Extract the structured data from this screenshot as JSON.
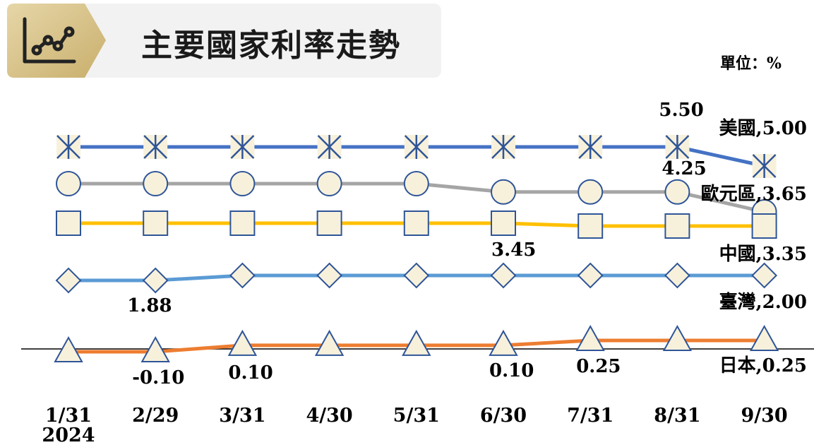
{
  "title": "主要國家利率走勢",
  "unit": "單位：%",
  "icon": "line-chart-icon",
  "colors": {
    "us": "#4472c4",
    "eu": "#a5a5a5",
    "cn": "#ffc000",
    "tw": "#5b9bd5",
    "jp": "#ed7d31",
    "marker_fill": "#f7f1dc",
    "marker_stroke": "#2f5597",
    "header_bg": "#f2f2f2",
    "icon_gold": "#d8c38e"
  },
  "chart_data": {
    "type": "line",
    "categories": [
      "1/31",
      "2/29",
      "3/31",
      "4/30",
      "5/31",
      "6/30",
      "7/31",
      "8/31",
      "9/30"
    ],
    "year_label": "2024",
    "series": [
      {
        "key": "us",
        "name": "美國",
        "marker": "asterisk",
        "values": [
          5.5,
          5.5,
          5.5,
          5.5,
          5.5,
          5.5,
          5.5,
          5.5,
          5.0
        ]
      },
      {
        "key": "eu",
        "name": "歐元區",
        "marker": "circle",
        "values": [
          4.5,
          4.5,
          4.5,
          4.5,
          4.5,
          4.25,
          4.25,
          4.25,
          3.65
        ]
      },
      {
        "key": "cn",
        "name": "中國",
        "marker": "square",
        "values": [
          3.45,
          3.45,
          3.45,
          3.45,
          3.45,
          3.45,
          3.35,
          3.35,
          3.35
        ]
      },
      {
        "key": "tw",
        "name": "臺灣",
        "marker": "diamond",
        "values": [
          1.88,
          1.88,
          2.0,
          2.0,
          2.0,
          2.0,
          2.0,
          2.0,
          2.0
        ]
      },
      {
        "key": "jp",
        "name": "日本",
        "marker": "triangle",
        "values": [
          -0.1,
          -0.1,
          0.1,
          0.1,
          0.1,
          0.1,
          0.25,
          0.25,
          0.25
        ]
      }
    ],
    "end_labels": [
      "美國,5.00",
      "歐元區,3.65",
      "中國,3.35",
      "臺灣,2.00",
      "日本,0.25"
    ],
    "data_labels": [
      {
        "series": "us",
        "index": 7,
        "text": "5.50"
      },
      {
        "series": "eu",
        "index": 7,
        "text": "4.25"
      },
      {
        "series": "cn",
        "index": 5,
        "text": "3.45"
      },
      {
        "series": "tw",
        "index": 1,
        "text": "1.88"
      },
      {
        "series": "jp",
        "index": 1,
        "text": "-0.10"
      },
      {
        "series": "jp",
        "index": 2,
        "text": "0.10"
      },
      {
        "series": "jp",
        "index": 5,
        "text": "0.10"
      },
      {
        "series": "jp",
        "index": 6,
        "text": "0.25"
      }
    ],
    "baseline": 0,
    "grid": false,
    "legend": "none"
  }
}
